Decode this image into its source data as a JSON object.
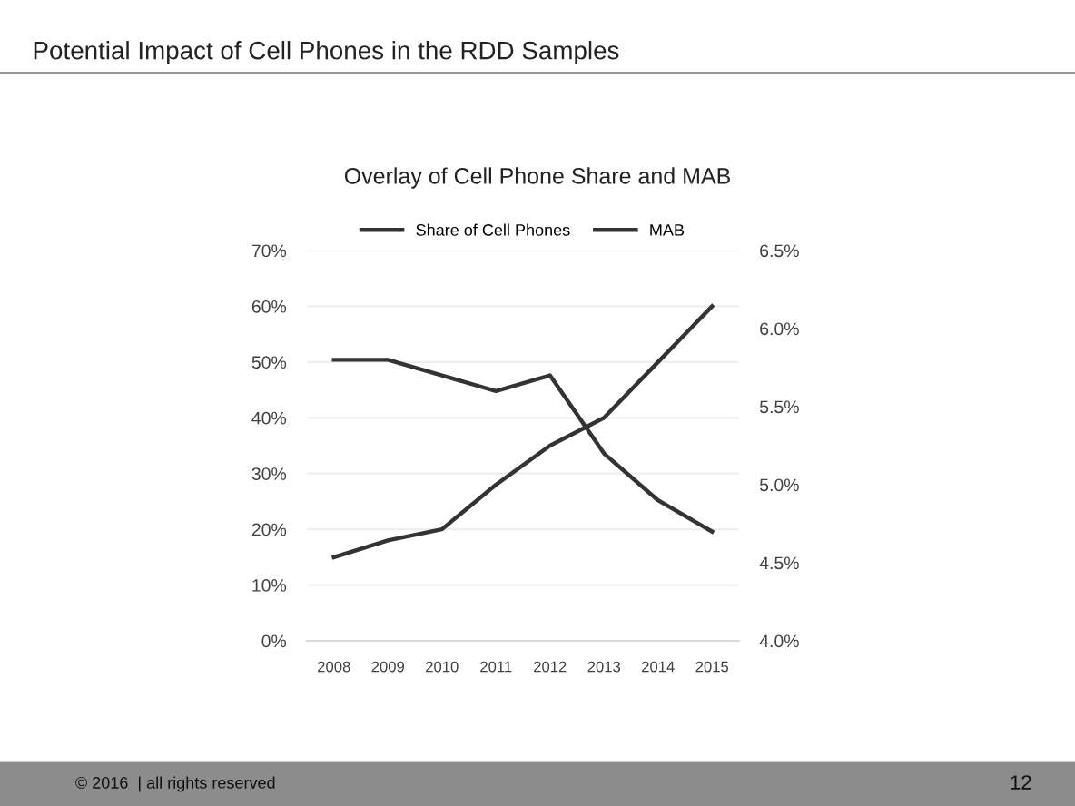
{
  "chart_data": {
    "type": "line",
    "title": "Overlay of Cell Phone Share and MAB",
    "annotations": [
      "Potential Impact of Cell Phones in the RDD Samples",
      "© 2016  | all rights reserved",
      "12"
    ],
    "categories": [
      "2008",
      "2009",
      "2010",
      "2011",
      "2012",
      "2013",
      "2014",
      "2015"
    ],
    "series": [
      {
        "name": "Share of Cell Phones",
        "color": "#333333",
        "values": [
          15,
          18,
          20,
          28,
          35,
          40,
          50,
          60
        ]
      },
      {
        "name": "MAB",
        "color": "#333333",
        "axis": "y2",
        "values": [
          5.8,
          5.8,
          5.7,
          5.6,
          5.7,
          5.2,
          4.9,
          4.7
        ]
      }
    ],
    "ylim": [
      0,
      70
    ],
    "yticks": [
      {
        "value": 0,
        "label": "0%"
      },
      {
        "value": 10,
        "label": "10%"
      },
      {
        "value": 20,
        "label": "20%"
      },
      {
        "value": 30,
        "label": "30%"
      },
      {
        "value": 40,
        "label": "40%"
      },
      {
        "value": 50,
        "label": "50%"
      },
      {
        "value": 60,
        "label": "60%"
      },
      {
        "value": 70,
        "label": "70%"
      }
    ],
    "y2lim": [
      4.0,
      6.5
    ],
    "y2ticks": [
      {
        "value": 4.0,
        "label": "4.0%"
      },
      {
        "value": 4.5,
        "label": "4.5%"
      },
      {
        "value": 5.0,
        "label": "5.0%"
      },
      {
        "value": 5.5,
        "label": "5.5%"
      },
      {
        "value": 6.0,
        "label": "6.0%"
      },
      {
        "value": 6.5,
        "label": "6.5%"
      }
    ],
    "grid": "y",
    "legend": "top",
    "marker": "none",
    "line_style": "solid"
  }
}
